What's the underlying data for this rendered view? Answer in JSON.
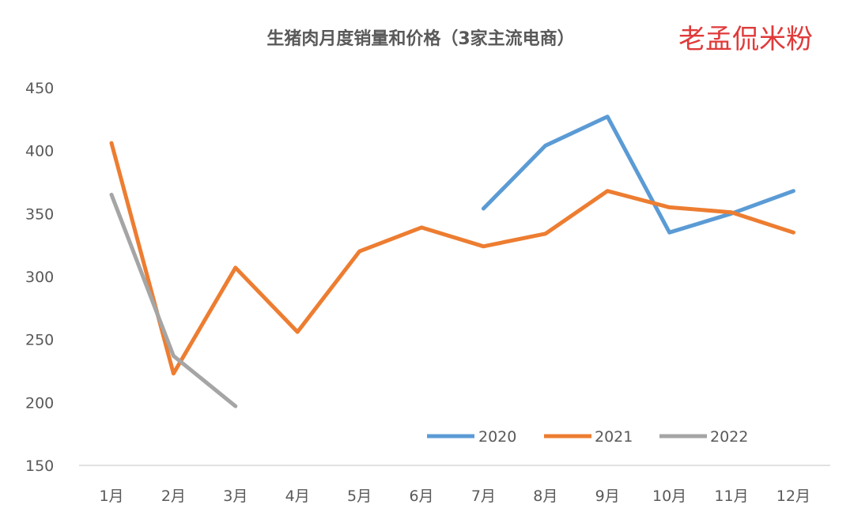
{
  "chart_data": {
    "type": "line",
    "title": "生猪肉月度销量和价格（3家主流电商）",
    "watermark": "老孟侃米粉",
    "categories": [
      "1月",
      "2月",
      "3月",
      "4月",
      "5月",
      "6月",
      "7月",
      "8月",
      "9月",
      "10月",
      "11月",
      "12月"
    ],
    "ylim": [
      150,
      450
    ],
    "yticks": [
      "450",
      "400",
      "350",
      "300",
      "250",
      "200",
      "150"
    ],
    "grid": false,
    "legend_position": "bottom-right",
    "series": [
      {
        "name": "2020",
        "color": "#5b9bd5",
        "values": [
          null,
          null,
          null,
          null,
          null,
          null,
          354,
          404,
          427,
          335,
          350,
          368
        ]
      },
      {
        "name": "2021",
        "color": "#ed7d31",
        "values": [
          406,
          223,
          307,
          256,
          320,
          339,
          324,
          334,
          368,
          355,
          351,
          335
        ]
      },
      {
        "name": "2022",
        "color": "#a5a5a5",
        "values": [
          365,
          237,
          197,
          null,
          null,
          null,
          null,
          null,
          null,
          null,
          null,
          null
        ]
      }
    ]
  }
}
